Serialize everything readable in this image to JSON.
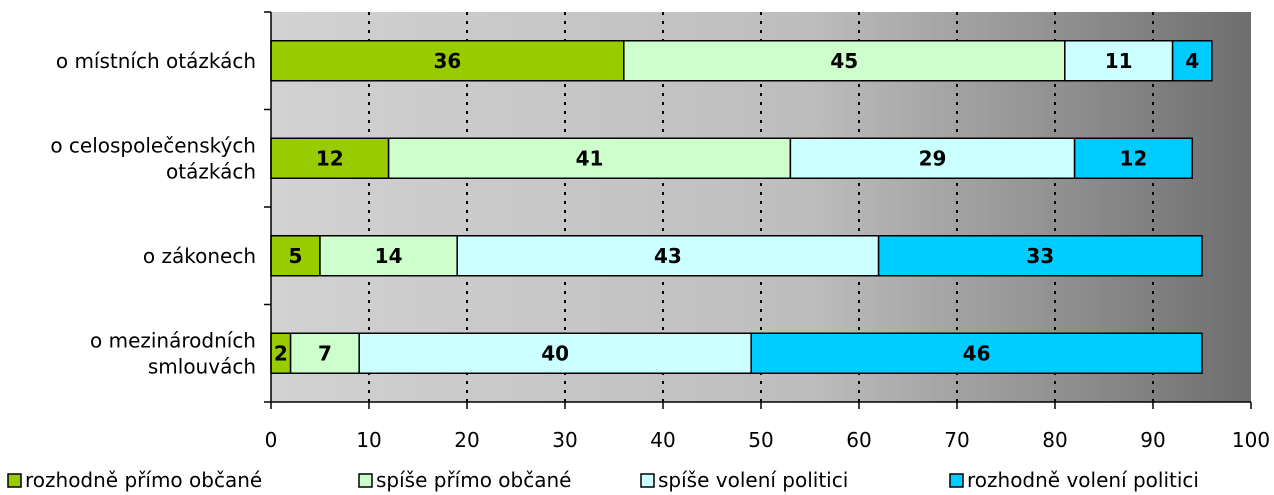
{
  "chart_data": {
    "type": "bar",
    "orientation": "horizontal",
    "stacked": true,
    "title": "",
    "xlabel": "",
    "ylabel": "",
    "xlim": [
      0,
      100
    ],
    "x_ticks": [
      0,
      10,
      20,
      30,
      40,
      50,
      60,
      70,
      80,
      90,
      100
    ],
    "grid": true,
    "legend_position": "bottom",
    "categories": [
      [
        "o místních otázkách"
      ],
      [
        "o celospolečenských",
        "otázkách"
      ],
      [
        "o zákonech"
      ],
      [
        "o mezinárodních",
        "smlouvách"
      ]
    ],
    "series": [
      {
        "name": "rozhodně přímo občané",
        "color": "#99cc00",
        "values": [
          36,
          12,
          5,
          2
        ]
      },
      {
        "name": "spíše přímo občané",
        "color": "#ccffcc",
        "values": [
          45,
          41,
          14,
          7
        ]
      },
      {
        "name": "spíše volení politici",
        "color": "#ccffff",
        "values": [
          11,
          29,
          43,
          40
        ]
      },
      {
        "name": "rozhodně volení politici",
        "color": "#00ccff",
        "values": [
          4,
          12,
          33,
          46
        ]
      }
    ]
  }
}
